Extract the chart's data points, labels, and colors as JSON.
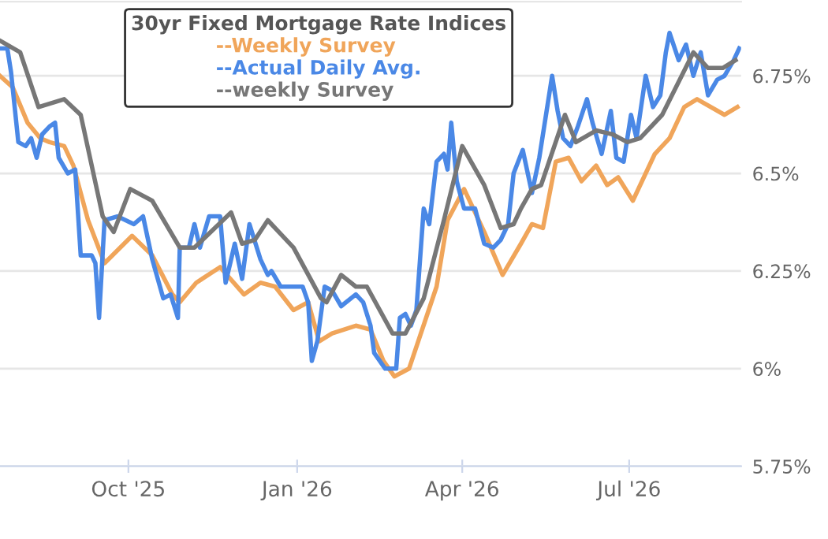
{
  "chart_data": {
    "type": "line",
    "legend_title": "30yr Fixed Mortgage Rate Indices",
    "legend": "top",
    "grid": "y",
    "marker": "none",
    "line_style": "solid",
    "xlim": [
      "2025-07-23",
      "2026-08-31"
    ],
    "ylim": [
      5.75,
      6.94
    ],
    "xticks": [
      {
        "value": "2025-10-01",
        "label": "Oct '25"
      },
      {
        "value": "2026-01-01",
        "label": "Jan '26"
      },
      {
        "value": "2026-04-01",
        "label": "Apr '26"
      },
      {
        "value": "2026-07-01",
        "label": "Jul '26"
      }
    ],
    "yticks": [
      {
        "value": 5.75,
        "label": "5.75%"
      },
      {
        "value": 6,
        "label": "6%"
      },
      {
        "value": 6.25,
        "label": "6.25%"
      },
      {
        "value": 6.5,
        "label": "6.5%"
      },
      {
        "value": 6.75,
        "label": "6.75%"
      }
    ],
    "series": [
      {
        "name": "--Weekly Survey",
        "color": "#f0a55a",
        "x": [
          "2025-07-23",
          "2025-07-30",
          "2025-08-07",
          "2025-08-14",
          "2025-08-19",
          "2025-08-27",
          "2025-09-01",
          "2025-09-09",
          "2025-09-18",
          "2025-10-03",
          "2025-10-14",
          "2025-10-25",
          "2025-10-29",
          "2025-11-07",
          "2025-11-20",
          "2025-12-03",
          "2025-12-12",
          "2025-12-20",
          "2025-12-30",
          "2026-01-07",
          "2026-01-13",
          "2026-01-20",
          "2026-02-02",
          "2026-02-10",
          "2026-02-17",
          "2026-02-23",
          "2026-03-03",
          "2026-03-18",
          "2026-03-24",
          "2026-04-02",
          "2026-04-13",
          "2026-04-23",
          "2026-05-03",
          "2026-05-09",
          "2026-05-15",
          "2026-05-22",
          "2026-05-29",
          "2026-06-05",
          "2026-06-13",
          "2026-06-19",
          "2026-06-25",
          "2026-07-03",
          "2026-07-15",
          "2026-07-23",
          "2026-07-31",
          "2026-08-07",
          "2026-08-22",
          "2026-08-29"
        ],
        "values": [
          6.75,
          6.72,
          6.63,
          6.59,
          6.58,
          6.57,
          6.52,
          6.38,
          6.27,
          6.34,
          6.29,
          6.19,
          6.17,
          6.22,
          6.26,
          6.19,
          6.22,
          6.21,
          6.15,
          6.17,
          6.07,
          6.09,
          6.11,
          6.1,
          6.02,
          5.98,
          6.0,
          6.21,
          6.38,
          6.46,
          6.35,
          6.24,
          6.32,
          6.37,
          6.36,
          6.53,
          6.54,
          6.48,
          6.52,
          6.47,
          6.49,
          6.43,
          6.55,
          6.59,
          6.67,
          6.69,
          6.65,
          6.67
        ]
      },
      {
        "name": "--Actual Daily Avg.",
        "color": "#4a88e6",
        "x": [
          "2025-07-23",
          "2025-07-27",
          "2025-07-29",
          "2025-08-02",
          "2025-08-06",
          "2025-08-09",
          "2025-08-12",
          "2025-08-15",
          "2025-08-19",
          "2025-08-22",
          "2025-08-24",
          "2025-08-29",
          "2025-09-02",
          "2025-09-05",
          "2025-09-11",
          "2025-09-13",
          "2025-09-15",
          "2025-09-18",
          "2025-09-25",
          "2025-10-04",
          "2025-10-09",
          "2025-10-14",
          "2025-10-20",
          "2025-10-24",
          "2025-10-28",
          "2025-10-29",
          "2025-11-03",
          "2025-11-06",
          "2025-11-09",
          "2025-11-14",
          "2025-11-20",
          "2025-11-23",
          "2025-11-28",
          "2025-12-02",
          "2025-12-06",
          "2025-12-12",
          "2025-12-16",
          "2025-12-18",
          "2025-12-23",
          "2026-01-04",
          "2026-01-07",
          "2026-01-09",
          "2026-01-12",
          "2026-01-16",
          "2026-01-20",
          "2026-01-25",
          "2026-02-02",
          "2026-02-06",
          "2026-02-10",
          "2026-02-12",
          "2026-02-18",
          "2026-02-24",
          "2026-02-26",
          "2026-03-01",
          "2026-03-04",
          "2026-03-07",
          "2026-03-11",
          "2026-03-14",
          "2026-03-18",
          "2026-03-22",
          "2026-03-24",
          "2026-03-26",
          "2026-03-29",
          "2026-04-02",
          "2026-04-08",
          "2026-04-13",
          "2026-04-18",
          "2026-04-22",
          "2026-04-26",
          "2026-04-29",
          "2026-05-04",
          "2026-05-09",
          "2026-05-13",
          "2026-05-17",
          "2026-05-20",
          "2026-05-23",
          "2026-05-26",
          "2026-05-30",
          "2026-06-03",
          "2026-06-08",
          "2026-06-11",
          "2026-06-16",
          "2026-06-21",
          "2026-06-24",
          "2026-06-28",
          "2026-07-02",
          "2026-07-05",
          "2026-07-10",
          "2026-07-14",
          "2026-07-18",
          "2026-07-21",
          "2026-07-23",
          "2026-07-28",
          "2026-08-01",
          "2026-08-05",
          "2026-08-09",
          "2026-08-13",
          "2026-08-18",
          "2026-08-22",
          "2026-08-27",
          "2026-08-30"
        ],
        "values": [
          6.82,
          6.82,
          6.76,
          6.58,
          6.57,
          6.59,
          6.54,
          6.6,
          6.62,
          6.63,
          6.54,
          6.5,
          6.51,
          6.29,
          6.29,
          6.27,
          6.13,
          6.38,
          6.39,
          6.37,
          6.39,
          6.28,
          6.18,
          6.19,
          6.13,
          6.31,
          6.31,
          6.37,
          6.31,
          6.39,
          6.39,
          6.22,
          6.32,
          6.23,
          6.37,
          6.28,
          6.24,
          6.25,
          6.21,
          6.21,
          6.17,
          6.02,
          6.07,
          6.21,
          6.2,
          6.16,
          6.19,
          6.17,
          6.11,
          6.04,
          6.0,
          6.0,
          6.13,
          6.14,
          6.11,
          6.15,
          6.41,
          6.37,
          6.53,
          6.55,
          6.51,
          6.63,
          6.48,
          6.41,
          6.41,
          6.32,
          6.31,
          6.33,
          6.37,
          6.5,
          6.56,
          6.45,
          6.54,
          6.66,
          6.75,
          6.66,
          6.59,
          6.57,
          6.62,
          6.69,
          6.63,
          6.55,
          6.66,
          6.54,
          6.53,
          6.65,
          6.59,
          6.75,
          6.67,
          6.7,
          6.81,
          6.86,
          6.79,
          6.83,
          6.75,
          6.81,
          6.7,
          6.74,
          6.75,
          6.79,
          6.82
        ]
      },
      {
        "name": "--weekly Survey",
        "color": "#777777",
        "x": [
          "2025-07-23",
          "2025-08-03",
          "2025-08-13",
          "2025-08-27",
          "2025-09-05",
          "2025-09-17",
          "2025-09-23",
          "2025-10-02",
          "2025-10-14",
          "2025-10-29",
          "2025-11-06",
          "2025-11-26",
          "2025-12-02",
          "2025-12-09",
          "2025-12-16",
          "2025-12-22",
          "2025-12-30",
          "2026-01-14",
          "2026-01-17",
          "2026-01-25",
          "2026-02-02",
          "2026-02-08",
          "2026-02-22",
          "2026-03-01",
          "2026-03-11",
          "2026-03-22",
          "2026-04-01",
          "2026-04-13",
          "2026-04-22",
          "2026-04-29",
          "2026-05-03",
          "2026-05-09",
          "2026-05-14",
          "2026-05-27",
          "2026-06-02",
          "2026-06-13",
          "2026-06-22",
          "2026-06-30",
          "2026-07-07",
          "2026-07-19",
          "2026-08-05",
          "2026-08-13",
          "2026-08-21",
          "2026-08-28"
        ],
        "values": [
          6.84,
          6.81,
          6.67,
          6.69,
          6.65,
          6.39,
          6.35,
          6.46,
          6.43,
          6.31,
          6.31,
          6.4,
          6.32,
          6.33,
          6.38,
          6.35,
          6.31,
          6.18,
          6.17,
          6.24,
          6.21,
          6.21,
          6.09,
          6.09,
          6.18,
          6.38,
          6.57,
          6.47,
          6.36,
          6.37,
          6.41,
          6.46,
          6.47,
          6.65,
          6.58,
          6.61,
          6.6,
          6.58,
          6.59,
          6.65,
          6.81,
          6.77,
          6.77,
          6.79
        ]
      }
    ]
  }
}
